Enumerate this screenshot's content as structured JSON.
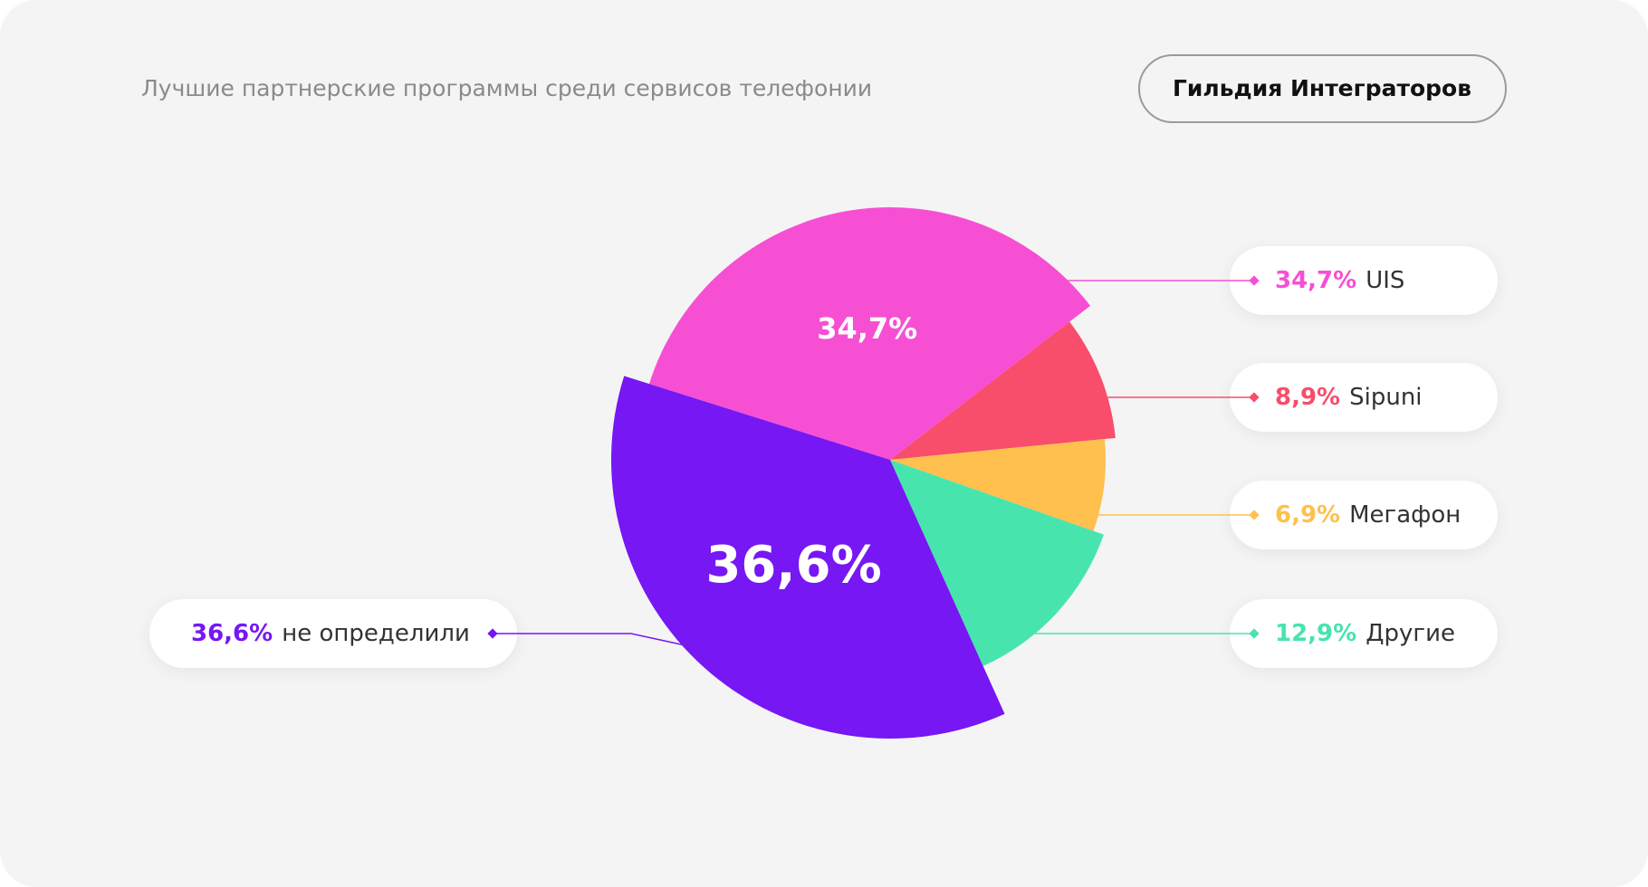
{
  "title": "Лучшие партнерские программы среди сервисов телефонии",
  "badge": "Гильдия Интеграторов",
  "chart_data": {
    "type": "pie",
    "categories": [
      "UIS",
      "Sipuni",
      "Мегафон",
      "Другие",
      "не определили"
    ],
    "values": [
      34.7,
      8.9,
      6.9,
      12.9,
      36.6
    ],
    "value_labels": [
      "34,7%",
      "8,9%",
      "6,9%",
      "12,9%",
      "36,6%"
    ],
    "colors": [
      "#f74fd3",
      "#f84d6b",
      "#ffc04e",
      "#47e5ad",
      "#7617f4"
    ]
  }
}
